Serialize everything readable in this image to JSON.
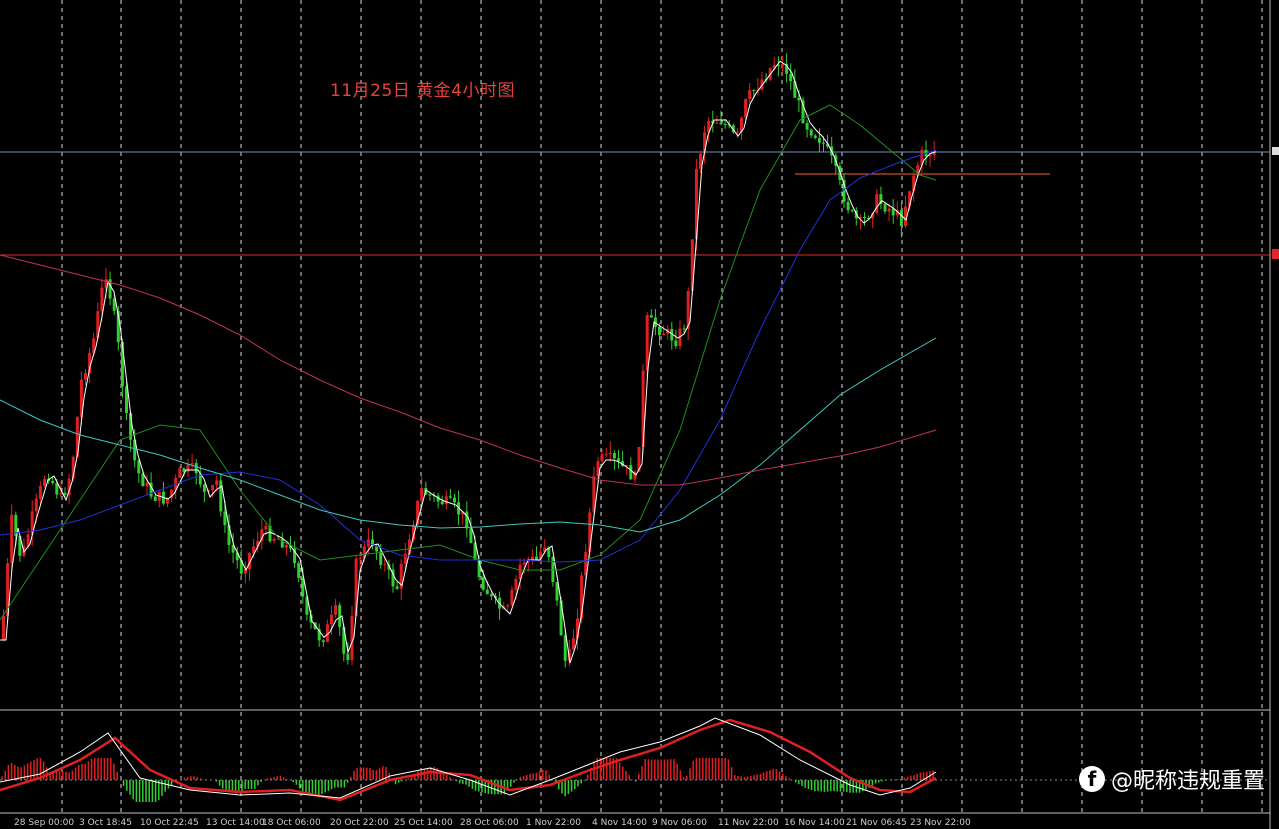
{
  "title": "11月25日  黄金4小时图",
  "watermark": {
    "icon": "facebook-icon",
    "text": "@昵称违规重置"
  },
  "colors": {
    "background": "#000000",
    "bull": "#e02020",
    "bear": "#30d030",
    "ma_white": "#ffffff",
    "ma_green": "#1f8f1f",
    "ma_blue": "#2030d8",
    "ma_cyan": "#40c8c0",
    "ma_pink": "#c03060",
    "h_line_blue": "#7090c0",
    "h_line_red": "#e02828",
    "short_line": "#ff6030",
    "macd_signal": "#e02020",
    "macd_line": "#ffffff"
  },
  "chart_data": {
    "type": "candlestick",
    "title": "11月25日  黄金4小时图",
    "x_tick_labels": [
      "28 Sep 00:00",
      "3 Oct 18:45",
      "10 Oct 22:45",
      "13 Oct 14:00",
      "18 Oct 06:00",
      "20 Oct 22:00",
      "25 Oct 14:00",
      "28 Oct 06:00",
      "1 Nov 22:00",
      "4 Nov 14:00",
      "9 Nov 06:00",
      "11 Nov 22:00",
      "16 Nov 14:00",
      "21 Nov 06:45",
      "23 Nov 22:00"
    ],
    "horizontal_lines": [
      "blue",
      "red",
      "short-orange"
    ],
    "indicators": [
      "MA (white)",
      "MA (green)",
      "MA (blue)",
      "MA (cyan)",
      "MA (pink)",
      "MACD"
    ],
    "grid": true,
    "grid_style": "dashed vertical"
  }
}
